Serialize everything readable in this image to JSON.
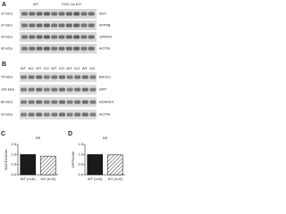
{
  "panel_a": {
    "letter": "A",
    "groups": [
      "WT",
      "PGC-1α KO"
    ],
    "left_labels": [
      "47 kDa",
      "37 kDa",
      "25 kDa",
      "42 kDa"
    ],
    "right_labels": [
      "AGT",
      "ATP5B",
      "GAPDH",
      "ACTIN"
    ]
  },
  "panel_b": {
    "letter": "B",
    "lanes": [
      "WT",
      "KO",
      "WT",
      "KO",
      "WT",
      "KO",
      "WT",
      "KO",
      "WT",
      "KO"
    ],
    "left_labels": [
      "75 kDa",
      "100 kDa",
      "80 kDa",
      "42 kDa"
    ],
    "right_labels": [
      "BACE1",
      "APP",
      "ADAM10",
      "ACTIN"
    ]
  },
  "chart_data": [
    {
      "type": "bar",
      "letter": "C",
      "title": "NS",
      "y_label": "BACE1/Actin",
      "categories": [
        "WT (n=6)",
        "KO (n=6)"
      ],
      "values": [
        1.0,
        0.92
      ],
      "colors": [
        "#1a1a1a",
        "#ffffff"
      ],
      "hatch": [
        false,
        true
      ],
      "ylim": [
        0,
        1.5
      ],
      "yticks": [
        {
          "value": 0,
          "label": "0.0"
        },
        0.5,
        {
          "value": 1,
          "label": "1.0"
        },
        1.5
      ]
    },
    {
      "type": "bar",
      "letter": "D",
      "title": "NS",
      "y_label": "APP/Actin",
      "categories": [
        "WT (n=6)",
        "KO (n=6)"
      ],
      "values": [
        1.0,
        0.98
      ],
      "colors": [
        "#1a1a1a",
        "#ffffff"
      ],
      "hatch": [
        false,
        true
      ],
      "ylim": [
        0,
        1.5
      ],
      "yticks": [
        {
          "value": 0,
          "label": "0.0"
        },
        0.5,
        {
          "value": 1,
          "label": "1.0"
        },
        1.5
      ]
    }
  ]
}
